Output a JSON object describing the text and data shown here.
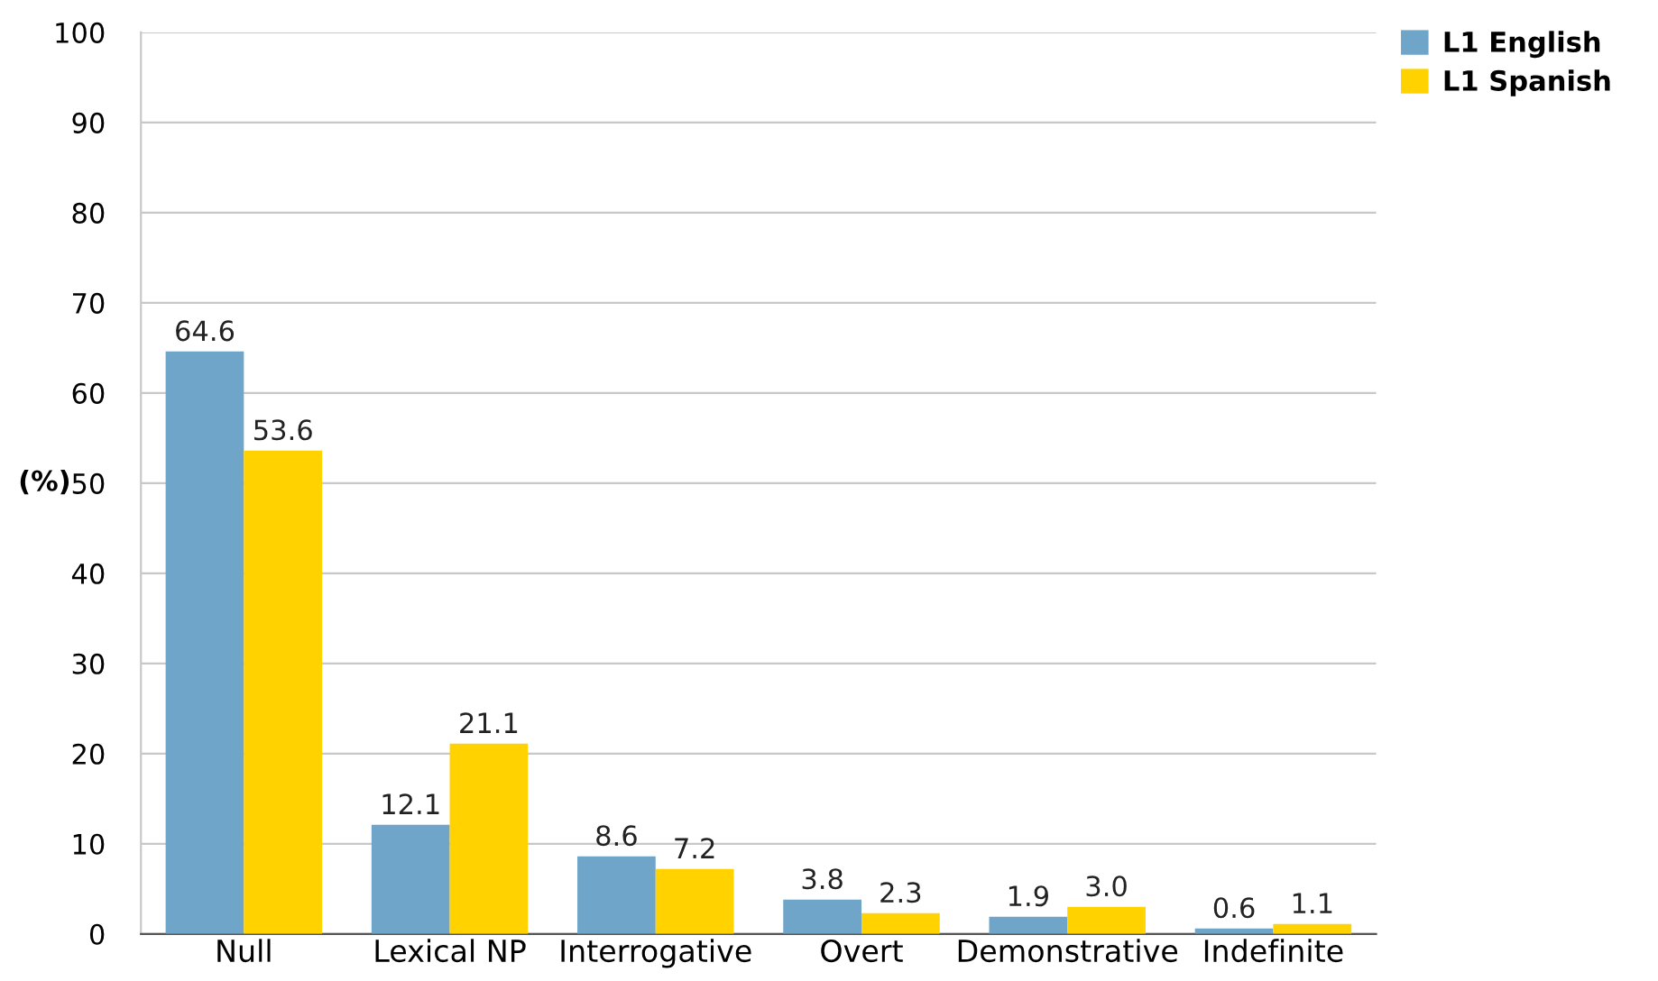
{
  "chart_data": {
    "type": "bar",
    "ylabel": "(%)",
    "categories": [
      "Null",
      "Lexical NP",
      "Interrogative",
      "Overt",
      "Demonstrative",
      "Indefinite"
    ],
    "series": [
      {
        "name": "L1 English",
        "color": "#6fa5c8",
        "values": [
          64.6,
          12.1,
          8.6,
          3.8,
          1.9,
          0.6
        ],
        "value_labels": [
          "64.6",
          "12.1",
          "8.6",
          "3.8",
          "1.9",
          "0.6"
        ]
      },
      {
        "name": "L1 Spanish",
        "color": "#ffd200",
        "values": [
          53.6,
          21.1,
          7.2,
          2.3,
          3.0,
          1.1
        ],
        "value_labels": [
          "53.6",
          "21.1",
          "7.2",
          "2.3",
          "3.0",
          "1.1"
        ]
      }
    ],
    "ylim": [
      0,
      100
    ],
    "yticks": [
      0,
      10,
      20,
      30,
      40,
      50,
      60,
      70,
      80,
      90,
      100
    ],
    "grid": "y",
    "legend": "top right"
  }
}
